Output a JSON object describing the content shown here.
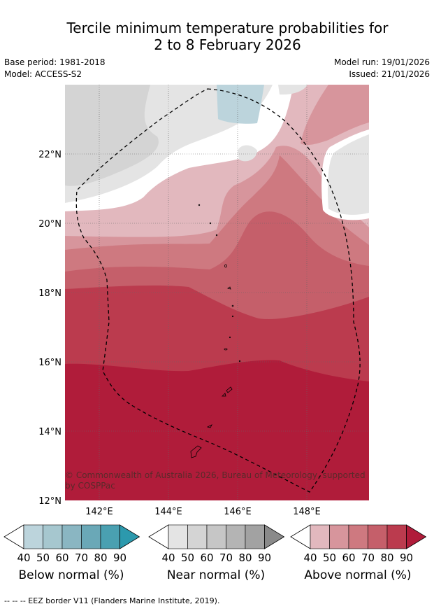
{
  "title_line1": "Tercile minimum temperature probabilities for",
  "title_line2": "2 to 8 February 2026",
  "base_period": "Base period: 1981-2018",
  "model": "Model: ACCESS-S2",
  "model_run": "Model run: 19/01/2026",
  "issued": "Issued: 21/01/2026",
  "copyright": "© Commonwealth of Australia 2026, Bureau of Meteorology, supported by COSPPac",
  "footer": "--  --  -- EEZ border V11 (Flanders Marine Institute, 2019).",
  "lat_labels": [
    "22°N",
    "20°N",
    "18°N",
    "16°N",
    "14°N",
    "12°N"
  ],
  "lon_labels": [
    "142°E",
    "144°E",
    "146°E",
    "148°E"
  ],
  "colorbars": [
    {
      "title": "Below normal (%)",
      "ticks": [
        "40",
        "50",
        "60",
        "70",
        "80",
        "90"
      ],
      "colors": [
        "#bcd4dc",
        "#a6c7cf",
        "#8ab6c2",
        "#6aa8b7",
        "#4aa0b1",
        "#2c99ad"
      ]
    },
    {
      "title": "Near normal (%)",
      "ticks": [
        "40",
        "50",
        "60",
        "70",
        "80",
        "90"
      ],
      "colors": [
        "#e4e4e4",
        "#d4d4d4",
        "#c6c6c6",
        "#b4b4b4",
        "#a2a2a2",
        "#8a8a8a"
      ]
    },
    {
      "title": "Above normal (%)",
      "ticks": [
        "40",
        "50",
        "60",
        "70",
        "80",
        "90"
      ],
      "colors": [
        "#e2b8be",
        "#d7959c",
        "#ce7980",
        "#c55f6a",
        "#bb3b4e",
        "#b01c3a"
      ]
    }
  ]
}
